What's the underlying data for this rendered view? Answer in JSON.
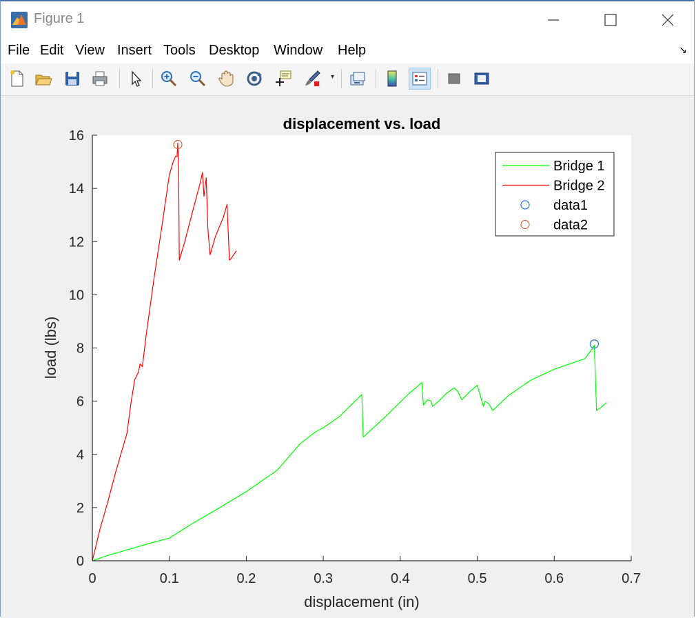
{
  "window": {
    "title": "Figure 1"
  },
  "menu": [
    "File",
    "Edit",
    "View",
    "Insert",
    "Tools",
    "Desktop",
    "Window",
    "Help"
  ],
  "toolbar": [
    "new-figure-icon",
    "open-file-icon",
    "save-icon",
    "print-icon",
    "pointer-icon",
    "zoom-in-icon",
    "zoom-out-icon",
    "pan-icon",
    "rotate-3d-icon",
    "data-cursor-icon",
    "brush-icon",
    "link-plot-icon",
    "colorbar-icon",
    "legend-icon",
    "hide-plot-tools-icon",
    "show-plot-tools-icon"
  ],
  "chart_data": {
    "type": "line",
    "title": "displacement vs. load",
    "xlabel": "displacement (in)",
    "ylabel": "load (lbs)",
    "xlim": [
      0,
      0.7
    ],
    "ylim": [
      0,
      16
    ],
    "xticks": [
      "0",
      "0.1",
      "0.2",
      "0.3",
      "0.4",
      "0.5",
      "0.6",
      "0.7"
    ],
    "yticks": [
      "0",
      "2",
      "4",
      "6",
      "8",
      "10",
      "12",
      "14",
      "16"
    ],
    "grid": false,
    "legend_position": "top-right",
    "series": [
      {
        "name": "Bridge 1",
        "color": "#00ff00",
        "x": [
          0,
          0.02,
          0.05,
          0.08,
          0.1,
          0.13,
          0.16,
          0.2,
          0.24,
          0.27,
          0.29,
          0.3,
          0.32,
          0.35,
          0.352,
          0.38,
          0.41,
          0.428,
          0.43,
          0.435,
          0.44,
          0.442,
          0.45,
          0.46,
          0.47,
          0.475,
          0.48,
          0.49,
          0.5,
          0.508,
          0.51,
          0.515,
          0.52,
          0.522,
          0.54,
          0.57,
          0.6,
          0.64,
          0.65,
          0.652,
          0.655,
          0.66,
          0.668
        ],
        "y": [
          0,
          0.2,
          0.45,
          0.7,
          0.85,
          1.4,
          1.9,
          2.6,
          3.4,
          4.4,
          4.85,
          5,
          5.4,
          6.25,
          4.65,
          5.4,
          6.25,
          6.7,
          5.85,
          6.05,
          6,
          5.8,
          6,
          6.3,
          6.5,
          6.35,
          6.05,
          6.35,
          6.6,
          5.8,
          6,
          5.9,
          5.65,
          5.7,
          6.2,
          6.8,
          7.2,
          7.6,
          8.0,
          8.1,
          5.65,
          5.75,
          5.95
        ]
      },
      {
        "name": "Bridge 2",
        "color": "#ff0000",
        "x": [
          0,
          0.01,
          0.02,
          0.03,
          0.045,
          0.05,
          0.055,
          0.06,
          0.062,
          0.065,
          0.07,
          0.08,
          0.09,
          0.1,
          0.105,
          0.108,
          0.11,
          0.111,
          0.112,
          0.113,
          0.12,
          0.13,
          0.14,
          0.143,
          0.145,
          0.148,
          0.15,
          0.153,
          0.16,
          0.17,
          0.175,
          0.178,
          0.18,
          0.187
        ],
        "y": [
          0,
          1.2,
          2.2,
          3.3,
          4.8,
          5.9,
          6.8,
          7.1,
          7.4,
          7.3,
          8.5,
          10.6,
          12.5,
          14.5,
          15.0,
          15.2,
          15.2,
          15.7,
          14.8,
          11.3,
          12,
          13.1,
          14.2,
          14.6,
          13.7,
          14.4,
          12.5,
          11.5,
          12.2,
          12.9,
          13.4,
          11.3,
          11.35,
          11.65
        ]
      },
      {
        "name": "data1",
        "color": "#1f77d4",
        "marker": "circle",
        "x": [
          0.652
        ],
        "y": [
          8.15
        ]
      },
      {
        "name": "data2",
        "color": "#e0663d",
        "marker": "circle",
        "x": [
          0.111
        ],
        "y": [
          15.65
        ]
      }
    ]
  }
}
